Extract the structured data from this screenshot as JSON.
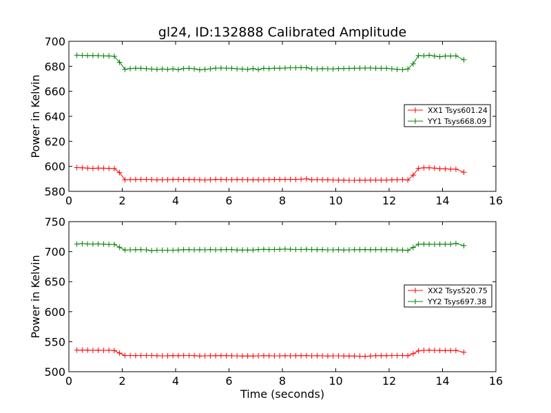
{
  "chart_data": [
    {
      "type": "line",
      "title": "gl24, ID:132888 Calibrated Amplitude",
      "xlabel": "",
      "ylabel": "Power in Kelvin",
      "xlim": [
        0,
        16
      ],
      "ylim": [
        580,
        700
      ],
      "xticks": [
        0,
        2,
        4,
        6,
        8,
        10,
        12,
        14,
        16
      ],
      "yticks": [
        580,
        600,
        620,
        640,
        660,
        680,
        700
      ],
      "legend_position": "center-right",
      "marker": "+",
      "x": [
        0.3,
        0.5,
        0.7,
        0.9,
        1.1,
        1.3,
        1.5,
        1.7,
        1.9,
        2.1,
        2.3,
        2.5,
        2.7,
        2.9,
        3.1,
        3.3,
        3.5,
        3.7,
        3.9,
        4.1,
        4.3,
        4.5,
        4.7,
        4.9,
        5.1,
        5.3,
        5.5,
        5.7,
        5.9,
        6.1,
        6.3,
        6.5,
        6.7,
        6.9,
        7.1,
        7.3,
        7.5,
        7.7,
        7.9,
        8.1,
        8.3,
        8.5,
        8.7,
        8.9,
        9.1,
        9.3,
        9.5,
        9.7,
        9.9,
        10.1,
        10.3,
        10.5,
        10.7,
        10.9,
        11.1,
        11.3,
        11.5,
        11.7,
        11.9,
        12.1,
        12.3,
        12.5,
        12.7,
        12.9,
        13.1,
        13.3,
        13.5,
        13.7,
        13.9,
        14.1,
        14.3,
        14.5,
        14.8
      ],
      "series": [
        {
          "name": "XX1 Tsys601.24",
          "color": "#ff0000",
          "values": [
            599,
            598.8,
            598.6,
            598.4,
            598.6,
            598.5,
            598.4,
            598.2,
            595,
            589.2,
            589.4,
            589.5,
            589.6,
            589.6,
            589.4,
            589.2,
            589.3,
            589.3,
            589.5,
            589.6,
            589.4,
            589.5,
            589.4,
            589.2,
            589.1,
            589.3,
            589.6,
            589.5,
            589.4,
            589.3,
            589.5,
            589.4,
            589.3,
            589.2,
            589.2,
            589.3,
            589.4,
            589.5,
            589.5,
            589.6,
            589.6,
            589.6,
            589.7,
            590.1,
            589.2,
            589.4,
            589.3,
            589.2,
            589.1,
            589.0,
            588.9,
            588.8,
            588.8,
            588.9,
            588.9,
            589.0,
            589.1,
            589.0,
            589.0,
            589.2,
            589.3,
            589.4,
            589.0,
            593.0,
            598.4,
            598.8,
            598.9,
            598.6,
            598.0,
            598.0,
            597.8,
            597.8,
            595.3
          ]
        },
        {
          "name": "YY1 Tsys668.09",
          "color": "#008000",
          "values": [
            688.8,
            688.7,
            688.6,
            688.6,
            688.5,
            688.4,
            688.3,
            688.0,
            683.2,
            677.6,
            678.2,
            678.5,
            678.4,
            678.1,
            677.8,
            677.6,
            677.8,
            677.6,
            677.9,
            677.4,
            678.2,
            678.4,
            678.0,
            677.2,
            677.6,
            678.0,
            678.5,
            678.6,
            678.5,
            678.4,
            678.0,
            677.8,
            677.6,
            678.2,
            677.4,
            678.4,
            678.1,
            678.5,
            678.4,
            678.6,
            678.8,
            678.8,
            678.9,
            678.9,
            678.0,
            678.0,
            678.1,
            678.0,
            677.9,
            678.1,
            678.2,
            678.3,
            678.4,
            678.5,
            678.6,
            678.6,
            678.4,
            678.4,
            678.4,
            678.0,
            677.6,
            677.4,
            677.8,
            682.0,
            688.6,
            688.4,
            688.8,
            688.2,
            687.6,
            688.2,
            688.2,
            688.4,
            685.2
          ]
        }
      ]
    },
    {
      "type": "line",
      "title": "",
      "xlabel": "Time (seconds)",
      "ylabel": "Power in Kelvin",
      "xlim": [
        0,
        16
      ],
      "ylim": [
        500,
        750
      ],
      "xticks": [
        0,
        2,
        4,
        6,
        8,
        10,
        12,
        14,
        16
      ],
      "yticks": [
        500,
        550,
        600,
        650,
        700,
        750
      ],
      "legend_position": "center-right",
      "marker": "+",
      "x": [
        0.3,
        0.5,
        0.7,
        0.9,
        1.1,
        1.3,
        1.5,
        1.7,
        1.9,
        2.1,
        2.3,
        2.5,
        2.7,
        2.9,
        3.1,
        3.3,
        3.5,
        3.7,
        3.9,
        4.1,
        4.3,
        4.5,
        4.7,
        4.9,
        5.1,
        5.3,
        5.5,
        5.7,
        5.9,
        6.1,
        6.3,
        6.5,
        6.7,
        6.9,
        7.1,
        7.3,
        7.5,
        7.7,
        7.9,
        8.1,
        8.3,
        8.5,
        8.7,
        8.9,
        9.1,
        9.3,
        9.5,
        9.7,
        9.9,
        10.1,
        10.3,
        10.5,
        10.7,
        10.9,
        11.1,
        11.3,
        11.5,
        11.7,
        11.9,
        12.1,
        12.3,
        12.5,
        12.7,
        12.9,
        13.1,
        13.3,
        13.5,
        13.7,
        13.9,
        14.1,
        14.3,
        14.5,
        14.8
      ],
      "series": [
        {
          "name": "XX2 Tsys520.75",
          "color": "#ff0000",
          "values": [
            536,
            536,
            536,
            535.6,
            535.8,
            535.6,
            535.7,
            535.3,
            531,
            527,
            526.9,
            526.8,
            526.9,
            527,
            526.9,
            526.6,
            526.4,
            526.5,
            526.8,
            526.6,
            526.9,
            527,
            526.8,
            526.2,
            526.4,
            526.5,
            526.6,
            526.8,
            526.6,
            526.5,
            526.4,
            526.2,
            526.3,
            526.2,
            526.4,
            526.6,
            526.5,
            526.4,
            526.4,
            526.6,
            526.4,
            526.6,
            526.6,
            526.8,
            526.4,
            526.6,
            526.4,
            526.2,
            526.4,
            526.4,
            526.3,
            526.2,
            526.0,
            525.8,
            525.6,
            526.0,
            526.6,
            526.6,
            526.6,
            527,
            527,
            527,
            526.6,
            530.2,
            534.6,
            535.6,
            535.8,
            535.6,
            535.2,
            535.2,
            535.2,
            535.4,
            532.3
          ]
        },
        {
          "name": "YY2 Tsys697.38",
          "color": "#008000",
          "values": [
            712.6,
            713.4,
            712.8,
            712.6,
            712.8,
            712.6,
            712.0,
            712.2,
            707.2,
            702.6,
            703.0,
            703.2,
            703.2,
            703.0,
            701.6,
            702.4,
            702.4,
            702.4,
            702.4,
            702.6,
            703.2,
            703.2,
            703.0,
            703.2,
            703.0,
            703.4,
            703.0,
            703.2,
            703.4,
            703.4,
            702.8,
            702.6,
            702.8,
            702.8,
            703.4,
            703.8,
            703.4,
            703.6,
            703.8,
            704.2,
            703.8,
            703.6,
            703.6,
            703.8,
            703.4,
            703.2,
            703.4,
            703.0,
            703.0,
            703.2,
            702.8,
            703.0,
            703.2,
            703.2,
            703.4,
            703.2,
            703.4,
            703.2,
            703.2,
            703.4,
            702.8,
            702.6,
            702.2,
            707.0,
            712.4,
            712.6,
            712.4,
            712.2,
            712.4,
            712.4,
            712.4,
            713.8,
            710.0
          ]
        }
      ]
    }
  ]
}
